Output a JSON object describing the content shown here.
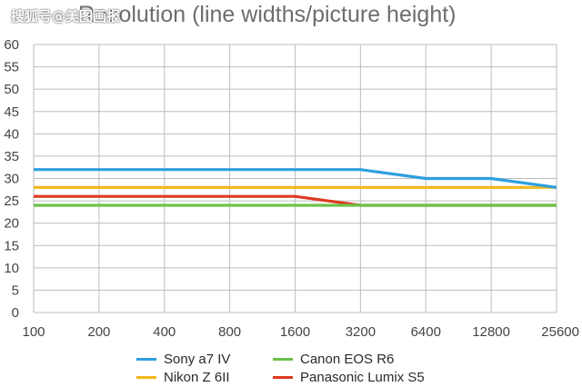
{
  "watermark": "搜狐号@美图画报",
  "chart_data": {
    "type": "line",
    "title": "Resolution (line widths/picture height)",
    "x": [
      "100",
      "200",
      "400",
      "800",
      "1600",
      "3200",
      "6400",
      "12800",
      "25600"
    ],
    "ylim": [
      0,
      60
    ],
    "yticks": [
      "0",
      "5",
      "10",
      "15",
      "20",
      "25",
      "30",
      "35",
      "40",
      "45",
      "50",
      "55",
      "60"
    ],
    "grid": true,
    "legend_position": "bottom",
    "series": [
      {
        "name": "Sony a7 IV",
        "color": "#2d9fe0",
        "values": [
          32,
          32,
          32,
          32,
          32,
          32,
          30,
          30,
          28
        ]
      },
      {
        "name": "Nikon Z 6II",
        "color": "#f2b81a",
        "values": [
          28,
          28,
          28,
          28,
          28,
          28,
          28,
          28,
          28
        ]
      },
      {
        "name": "Canon EOS R6",
        "color": "#6cc24a",
        "values": [
          24,
          24,
          24,
          24,
          24,
          24,
          24,
          24,
          24
        ]
      },
      {
        "name": "Panasonic Lumix S5",
        "color": "#dd3a22",
        "values": [
          26,
          26,
          26,
          26,
          26,
          24,
          24,
          24,
          24
        ]
      }
    ]
  }
}
